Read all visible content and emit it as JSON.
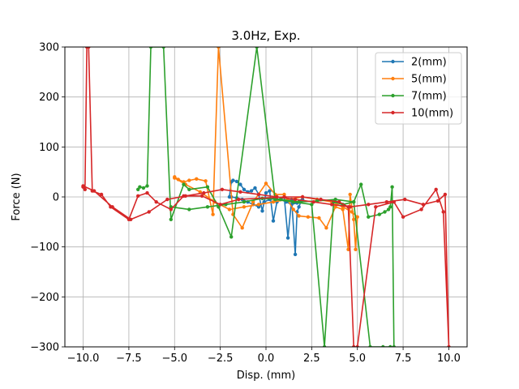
{
  "chart_data": {
    "type": "line",
    "title": "3.0Hz, Exp.",
    "xlabel": "Disp. (mm)",
    "ylabel": "Force (N)",
    "xlim": [
      -11.0,
      11.0
    ],
    "ylim": [
      -300,
      300
    ],
    "xticks": [
      -10.0,
      -7.5,
      -5.0,
      -2.5,
      0.0,
      2.5,
      5.0,
      7.5,
      10.0
    ],
    "xtick_labels": [
      "−10.0",
      "−7.5",
      "−5.0",
      "−2.5",
      "0.0",
      "2.5",
      "5.0",
      "7.5",
      "10.0"
    ],
    "yticks": [
      -300,
      -200,
      -100,
      0,
      100,
      200,
      300
    ],
    "ytick_labels": [
      "−300",
      "−200",
      "−100",
      "0",
      "100",
      "200",
      "300"
    ],
    "grid": true,
    "legend_position": "top-right",
    "series": [
      {
        "name": "2(mm)",
        "color": "#1f77b4",
        "x": [
          -2.0,
          -1.9,
          -1.8,
          -1.6,
          -1.4,
          -1.2,
          -1.0,
          -0.8,
          -0.6,
          -0.4,
          -0.2,
          0.0,
          0.2,
          0.4,
          0.6,
          0.8,
          1.0,
          1.2,
          1.4,
          1.6,
          1.7,
          1.8,
          1.9,
          2.0,
          1.9,
          1.7,
          1.4,
          1.1,
          0.8,
          0.5,
          0.2,
          -0.1,
          -0.4,
          -0.7,
          -1.0,
          -1.3,
          -1.6,
          -1.9
        ],
        "y": [
          0,
          30,
          33,
          31,
          25,
          15,
          10,
          12,
          18,
          5,
          -28,
          8,
          12,
          -48,
          -10,
          -5,
          0,
          -82,
          -5,
          -115,
          -30,
          -20,
          -10,
          -5,
          -8,
          -12,
          -15,
          -10,
          -5,
          -3,
          -5,
          -10,
          -20,
          -15,
          -10,
          -5,
          -2,
          0
        ]
      },
      {
        "name": "5(mm)",
        "color": "#ff7f0e",
        "x": [
          -5.0,
          -4.8,
          -4.5,
          -4.2,
          -3.8,
          -3.3,
          -2.9,
          -2.6,
          -1.8,
          -1.3,
          -0.7,
          0.0,
          0.5,
          1.0,
          1.5,
          1.8,
          2.3,
          2.9,
          3.3,
          3.8,
          4.2,
          4.5,
          4.6,
          4.8,
          4.9,
          5.0,
          4.7,
          4.2,
          3.6,
          2.8,
          2.0,
          1.2,
          0.4,
          -0.4,
          -1.2,
          -2.0,
          -2.8,
          -3.6,
          -4.4,
          -5.0
        ],
        "y": [
          40,
          35,
          30,
          33,
          36,
          32,
          -35,
          300,
          -35,
          -62,
          -10,
          27,
          5,
          5,
          -25,
          -38,
          -40,
          -42,
          -62,
          -20,
          -25,
          -105,
          5,
          -45,
          -105,
          -40,
          -30,
          -20,
          -10,
          -5,
          0,
          -5,
          -10,
          -15,
          -20,
          -25,
          -10,
          10,
          25,
          38
        ]
      },
      {
        "name": "7(mm)",
        "color": "#2ca02c",
        "x": [
          -7.0,
          -6.9,
          -6.7,
          -6.5,
          -6.3,
          -5.6,
          -5.2,
          -4.5,
          -4.2,
          -3.2,
          -2.6,
          -1.9,
          -0.5,
          0.5,
          1.5,
          2.5,
          3.2,
          3.7,
          4.2,
          4.8,
          5.2,
          5.6,
          6.2,
          6.5,
          6.7,
          6.8,
          6.9,
          7.0,
          6.8,
          6.4,
          5.7,
          4.8,
          3.8,
          2.8,
          1.8,
          0.8,
          -0.2,
          -1.2,
          -2.2,
          -3.2,
          -4.2,
          -5.2
        ],
        "y": [
          15,
          20,
          18,
          22,
          300,
          300,
          -45,
          25,
          15,
          20,
          -20,
          -80,
          300,
          -5,
          -10,
          -15,
          -300,
          -10,
          -15,
          -10,
          25,
          -40,
          -35,
          -30,
          -25,
          -20,
          20,
          -300,
          -300,
          -300,
          -300,
          -10,
          -5,
          -8,
          -10,
          -5,
          -3,
          -10,
          -15,
          -20,
          -25,
          -20
        ]
      },
      {
        "name": "10(mm)",
        "color": "#d62728",
        "x": [
          -10.0,
          -9.9,
          -9.8,
          -9.7,
          -9.5,
          -9.0,
          -8.5,
          -7.5,
          -7.0,
          -6.5,
          -6.0,
          -5.2,
          -4.5,
          -3.5,
          -2.5,
          -1.5,
          1.0,
          2.0,
          3.0,
          4.0,
          4.5,
          4.8,
          5.0,
          6.0,
          7.0,
          7.5,
          8.5,
          9.3,
          9.7,
          10.0,
          9.8,
          9.4,
          8.6,
          7.6,
          6.6,
          5.6,
          4.6,
          3.6,
          2.6,
          1.6,
          0.6,
          -0.4,
          -1.4,
          -2.4,
          -3.4,
          -4.4,
          -5.4,
          -6.4,
          -7.4,
          -8.4,
          -9.4,
          -10.0
        ],
        "y": [
          20,
          15,
          300,
          300,
          12,
          5,
          -20,
          -45,
          2,
          8,
          -10,
          -25,
          2,
          2,
          -15,
          -5,
          0,
          0,
          -5,
          -10,
          -20,
          -300,
          -300,
          -20,
          -10,
          -40,
          -25,
          15,
          -30,
          -300,
          5,
          -8,
          -15,
          -5,
          -10,
          -15,
          -20,
          -15,
          -10,
          -5,
          0,
          5,
          10,
          15,
          8,
          2,
          -5,
          -30,
          -45,
          -20,
          12,
          22
        ]
      }
    ]
  }
}
